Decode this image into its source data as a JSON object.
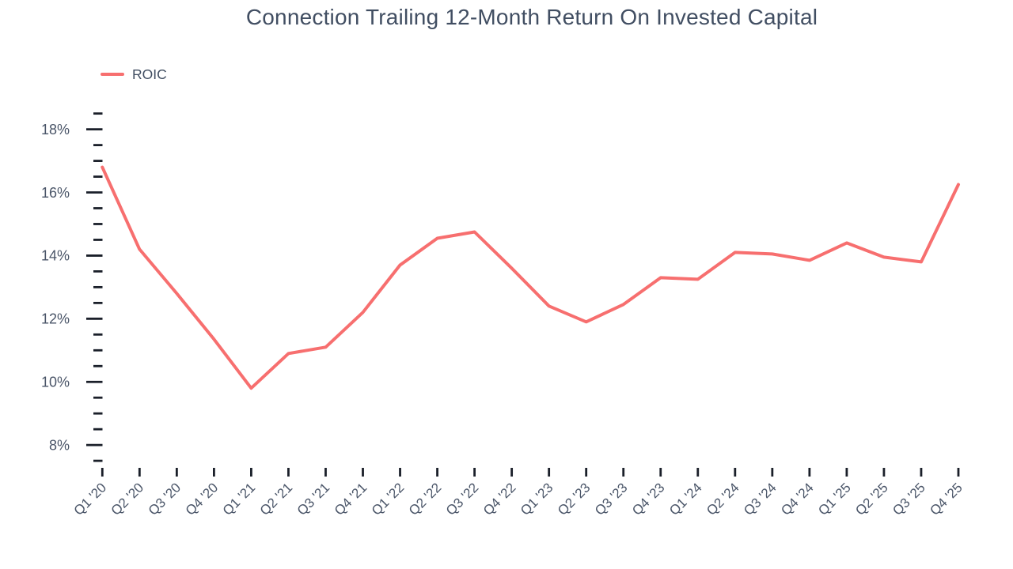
{
  "header": {
    "title": "Connection Trailing 12-Month Return On Invested Capital"
  },
  "legend": {
    "items": [
      {
        "label": "ROIC",
        "color": "#f76f6f"
      }
    ]
  },
  "chart_data": {
    "type": "line",
    "title": "Connection Trailing 12-Month Return On Invested Capital",
    "xlabel": "",
    "ylabel": "",
    "categories": [
      "Q1 '20",
      "Q2 '20",
      "Q3 '20",
      "Q4 '20",
      "Q1 '21",
      "Q2 '21",
      "Q3 '21",
      "Q4 '21",
      "Q1 '22",
      "Q2 '22",
      "Q3 '22",
      "Q4 '22",
      "Q1 '23",
      "Q2 '23",
      "Q3 '23",
      "Q4 '23",
      "Q1 '24",
      "Q2 '24",
      "Q3 '24",
      "Q4 '24",
      "Q1 '25",
      "Q2 '25",
      "Q3 '25",
      "Q4 '25"
    ],
    "series": [
      {
        "name": "ROIC",
        "color": "#f76f6f",
        "values": [
          16.8,
          14.2,
          12.8,
          11.35,
          9.8,
          10.9,
          11.1,
          12.2,
          13.7,
          14.55,
          14.75,
          13.6,
          12.4,
          11.9,
          12.45,
          13.3,
          13.25,
          14.1,
          14.05,
          13.85,
          14.4,
          13.95,
          13.8,
          16.25
        ]
      }
    ],
    "ylim": [
      7.5,
      18.5
    ],
    "yticks_major": [
      8,
      10,
      12,
      14,
      16,
      18
    ],
    "ytick_minor_step": 0.5,
    "ytick_suffix": "%",
    "grid": false,
    "legend_position": "top-left",
    "x_label_rotation_deg": -45,
    "colors": {
      "line": "#f76f6f",
      "axis_tick": "#1a1f29",
      "axis_label": "#4a5568",
      "title_text": "#414e62"
    }
  }
}
